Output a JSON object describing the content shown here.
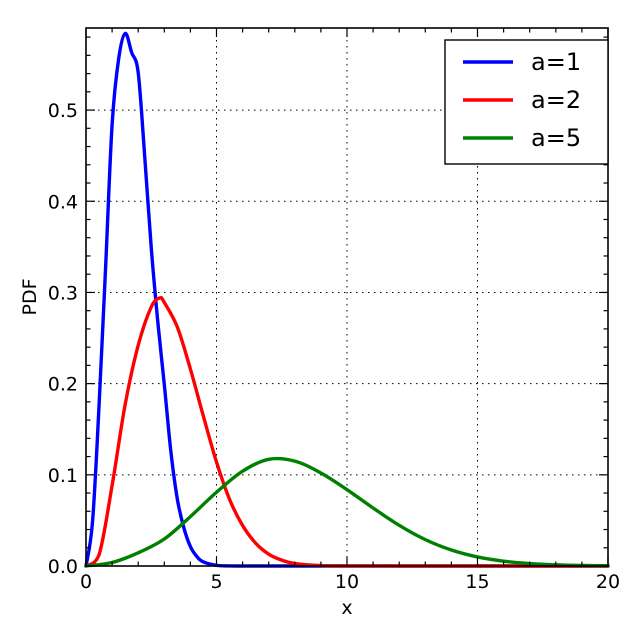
{
  "chart_data": {
    "type": "line",
    "title": "",
    "xlabel": "x",
    "ylabel": "PDF",
    "xlim": [
      0,
      20
    ],
    "ylim": [
      0,
      0.59
    ],
    "xticks": [
      0,
      5,
      10,
      15,
      20
    ],
    "yticks": [
      0.0,
      0.1,
      0.2,
      0.3,
      0.4,
      0.5
    ],
    "xtick_labels": [
      "0",
      "5",
      "10",
      "15",
      "20"
    ],
    "ytick_labels": [
      "0.0",
      "0.1",
      "0.2",
      "0.3",
      "0.4",
      "0.5"
    ],
    "grid": true,
    "legend_position": "top-right",
    "series": [
      {
        "name": "a=1",
        "color": "#0000ff",
        "x": [
          0,
          0.25,
          0.5,
          0.75,
          1.0,
          1.25,
          1.5,
          1.75,
          2.0,
          2.25,
          2.5,
          2.75,
          3.0,
          3.25,
          3.5,
          3.75,
          4.0,
          4.25,
          4.5,
          5.0,
          5.5,
          6.0,
          7.0,
          8.0,
          10.0,
          15.0,
          20.0
        ],
        "y": [
          0.0,
          0.0485,
          0.176,
          0.327,
          0.484,
          0.556,
          0.584,
          0.563,
          0.541,
          0.449,
          0.349,
          0.268,
          0.199,
          0.126,
          0.0733,
          0.0418,
          0.0213,
          0.0103,
          0.0045,
          0.0007,
          0.0001,
          0.0,
          0.0,
          0.0,
          0.0,
          0.0,
          0.0
        ]
      },
      {
        "name": "a=2",
        "color": "#ff0000",
        "x": [
          0,
          0.5,
          1.0,
          1.5,
          2.0,
          2.5,
          2.83,
          3.0,
          3.5,
          4.0,
          4.5,
          5.0,
          5.5,
          6.0,
          6.5,
          7.0,
          7.5,
          8.0,
          9.0,
          10.0,
          12.0,
          15.0,
          20.0
        ],
        "y": [
          0.0,
          0.0123,
          0.0883,
          0.177,
          0.242,
          0.284,
          0.294,
          0.289,
          0.262,
          0.216,
          0.164,
          0.114,
          0.0731,
          0.0444,
          0.025,
          0.013,
          0.0064,
          0.0027,
          0.0005,
          0.0001,
          0.0,
          0.0,
          0.0
        ]
      },
      {
        "name": "a=5",
        "color": "#008000",
        "x": [
          0,
          1,
          2,
          3,
          4,
          5,
          6,
          7,
          8,
          9,
          10,
          11,
          12,
          13,
          14,
          15,
          16,
          17,
          18,
          19,
          20
        ],
        "y": [
          0.0,
          0.0038,
          0.0145,
          0.0296,
          0.0542,
          0.0809,
          0.104,
          0.117,
          0.115,
          0.102,
          0.0837,
          0.0636,
          0.0446,
          0.0289,
          0.0175,
          0.0099,
          0.0053,
          0.0027,
          0.0013,
          0.0006,
          0.0003
        ]
      }
    ]
  }
}
